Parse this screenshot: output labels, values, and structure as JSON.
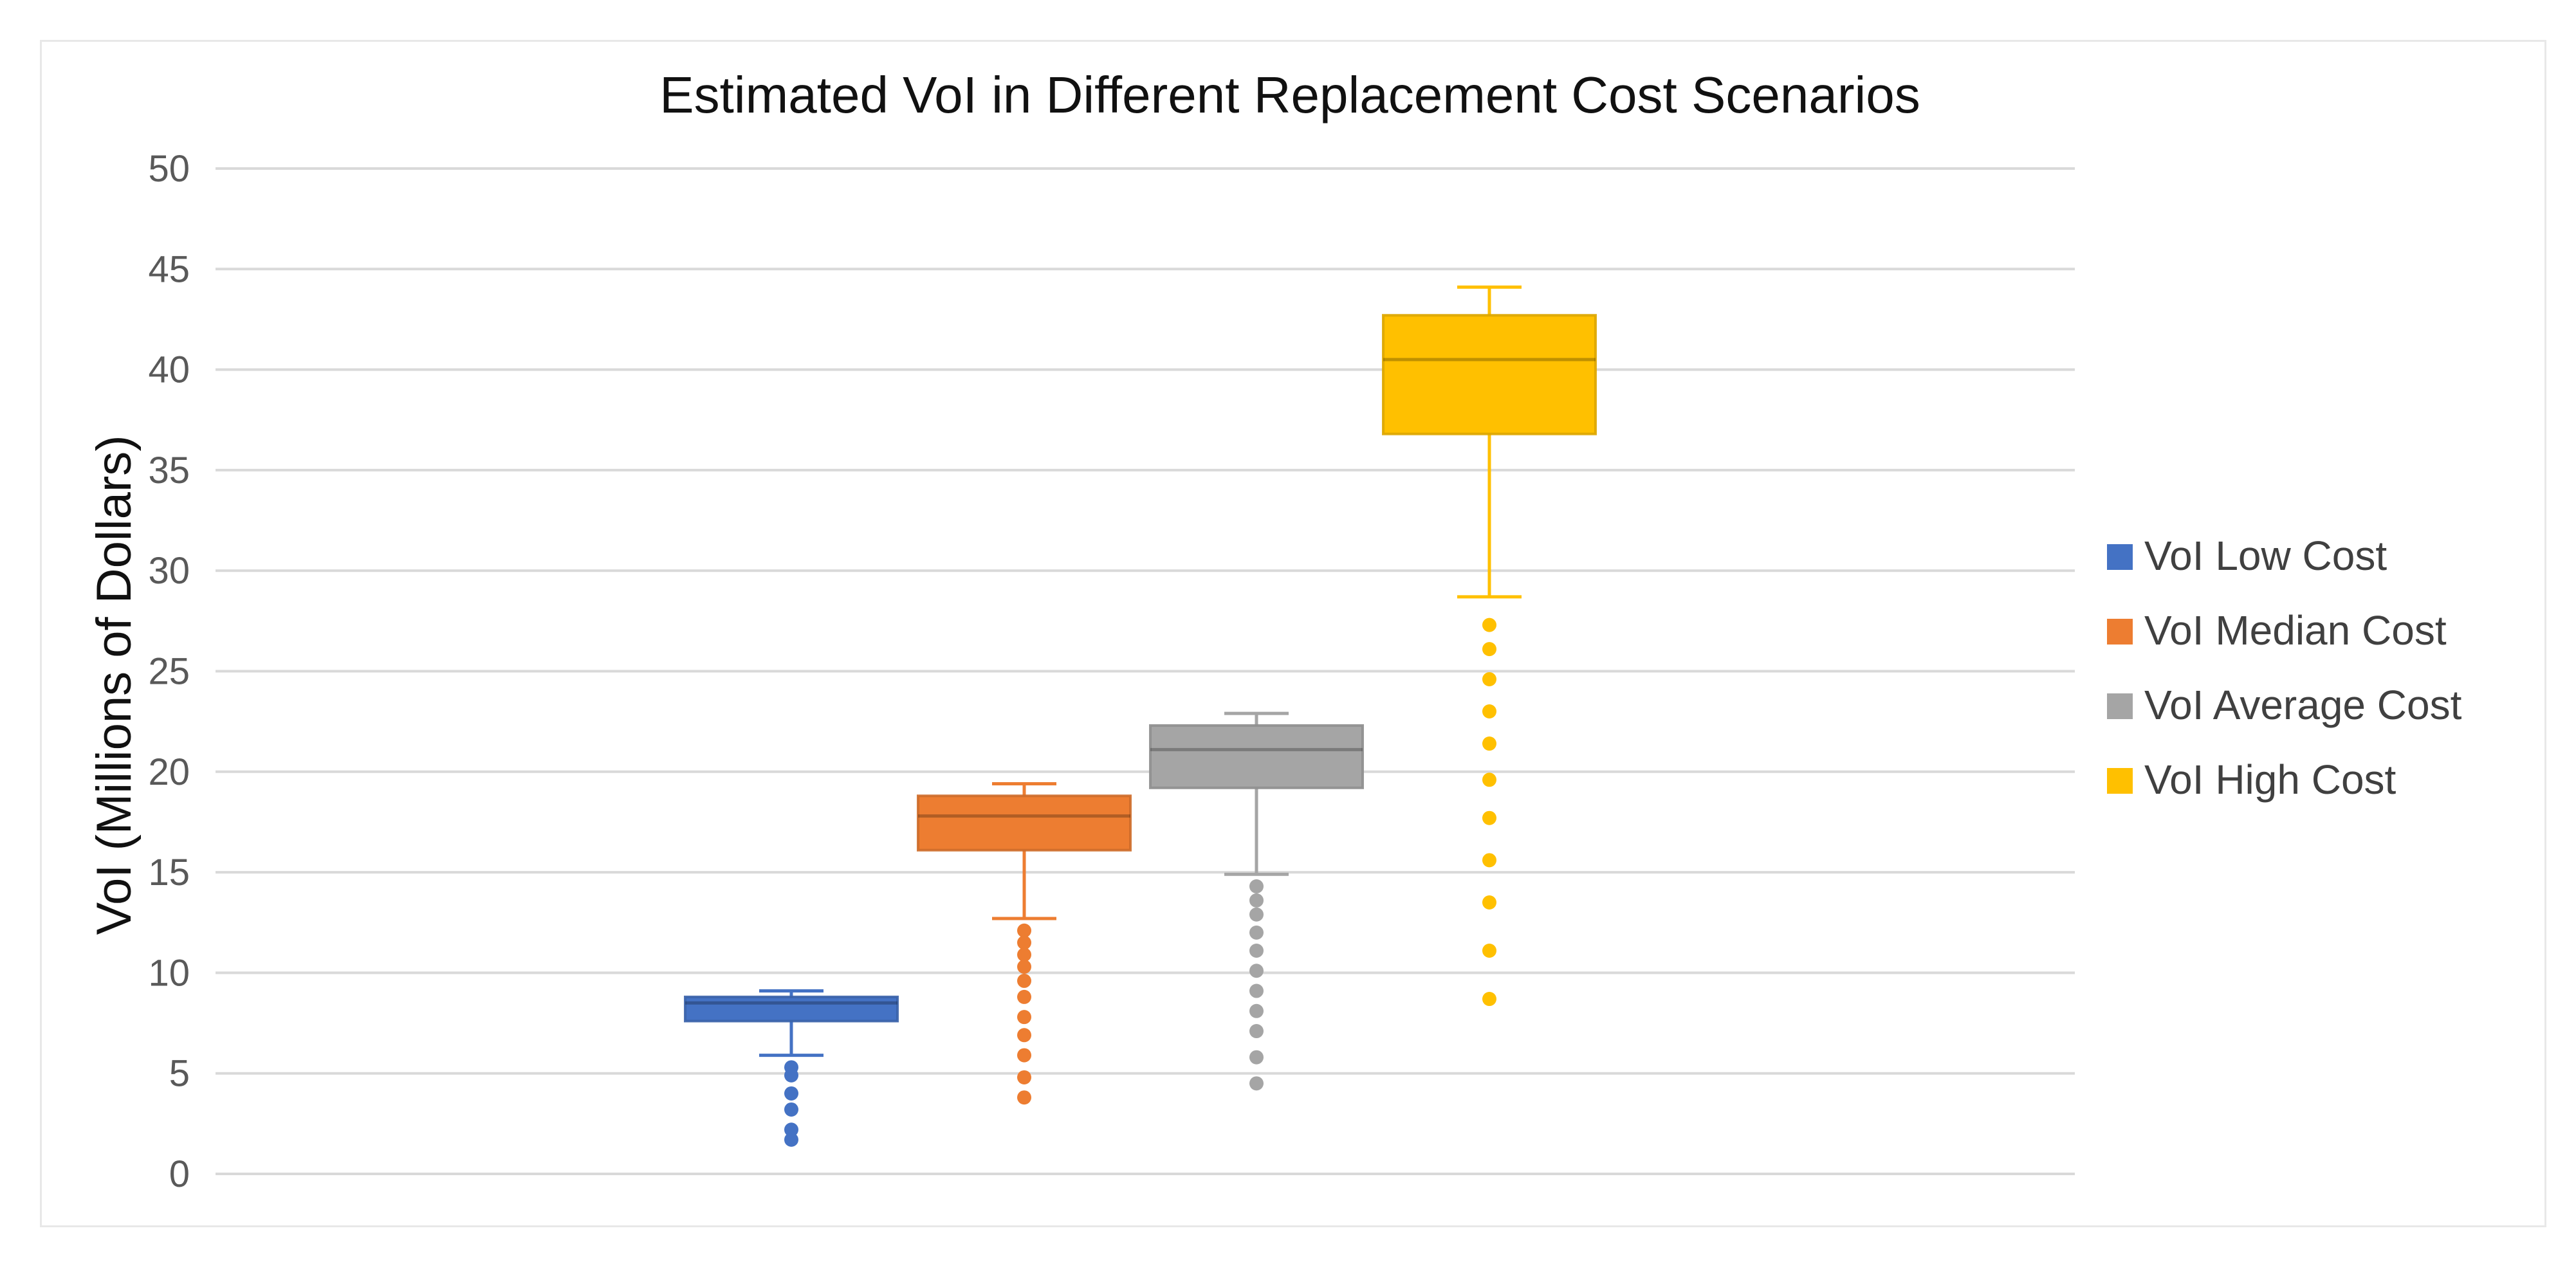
{
  "chart_data": {
    "type": "box",
    "title": "Estimated VoI in Different Replacement Cost Scenarios",
    "xlabel": "",
    "ylabel": "VoI (Millions of Dollars)",
    "ylim": [
      0,
      50
    ],
    "yticks": [
      0,
      5,
      10,
      15,
      20,
      25,
      30,
      35,
      40,
      45,
      50
    ],
    "grid": true,
    "legend_position": "right",
    "series": [
      {
        "name": "VoI Low Cost",
        "color": "#4472C4",
        "whisker_low": 5.9,
        "q1": 7.6,
        "median": 8.5,
        "q3": 8.8,
        "whisker_high": 9.1,
        "outliers": [
          5.3,
          4.9,
          4.0,
          3.2,
          2.2,
          1.7
        ]
      },
      {
        "name": "VoI Median Cost",
        "color": "#ED7D31",
        "whisker_low": 12.7,
        "q1": 16.1,
        "median": 17.8,
        "q3": 18.8,
        "whisker_high": 19.4,
        "outliers": [
          12.1,
          11.5,
          10.9,
          10.3,
          9.6,
          8.8,
          7.8,
          6.9,
          5.9,
          4.8,
          3.8
        ]
      },
      {
        "name": "VoI Average Cost",
        "color": "#A5A5A5",
        "whisker_low": 14.9,
        "q1": 19.2,
        "median": 21.1,
        "q3": 22.3,
        "whisker_high": 22.9,
        "outliers": [
          14.3,
          13.6,
          12.9,
          12.0,
          11.1,
          10.1,
          9.1,
          8.1,
          7.1,
          5.8,
          4.5
        ]
      },
      {
        "name": "VoI High Cost",
        "color": "#FFC000",
        "whisker_low": 28.7,
        "q1": 36.8,
        "median": 40.5,
        "q3": 42.7,
        "whisker_high": 44.1,
        "outliers": [
          27.3,
          26.1,
          24.6,
          23.0,
          21.4,
          19.6,
          17.7,
          15.6,
          13.5,
          11.1,
          8.7
        ]
      }
    ]
  }
}
